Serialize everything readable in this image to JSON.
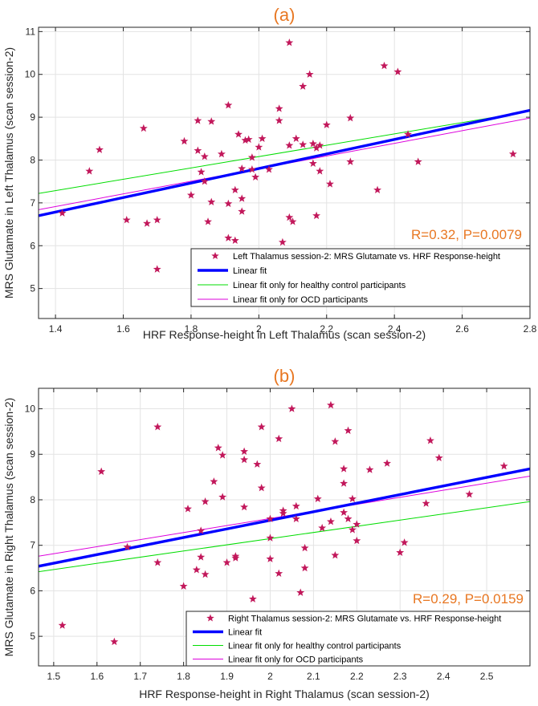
{
  "chart_data": [
    {
      "type": "scatter",
      "title": "(a)",
      "xlabel": "HRF Response-height in Left Thalamus (scan session-2)",
      "ylabel": "MRS Glutamate in Left Thalamus (scan session-2)",
      "xlim": [
        1.35,
        2.8
      ],
      "ylim": [
        4.3,
        11.1
      ],
      "xticks": [
        1.4,
        1.6,
        1.8,
        2,
        2.2,
        2.4,
        2.6,
        2.8
      ],
      "yticks": [
        5,
        6,
        7,
        8,
        9,
        10,
        11
      ],
      "stats_text": "R=0.32, P=0.0079",
      "series": [
        {
          "name": "Left Thalamus session-2: MRS Glutamate vs. HRF Response-height",
          "kind": "points",
          "color": "#C2185B",
          "points": [
            [
              1.42,
              6.76
            ],
            [
              1.5,
              7.74
            ],
            [
              1.53,
              8.24
            ],
            [
              1.61,
              6.6
            ],
            [
              1.66,
              8.74
            ],
            [
              1.67,
              6.52
            ],
            [
              1.7,
              6.6
            ],
            [
              1.7,
              5.45
            ],
            [
              1.78,
              8.44
            ],
            [
              1.8,
              7.18
            ],
            [
              1.82,
              8.92
            ],
            [
              1.82,
              8.22
            ],
            [
              1.83,
              7.72
            ],
            [
              1.84,
              8.08
            ],
            [
              1.84,
              7.5
            ],
            [
              1.85,
              6.56
            ],
            [
              1.86,
              7.02
            ],
            [
              1.86,
              8.9
            ],
            [
              1.89,
              8.14
            ],
            [
              1.91,
              9.28
            ],
            [
              1.91,
              6.98
            ],
            [
              1.91,
              6.18
            ],
            [
              1.91,
              5.85
            ],
            [
              1.93,
              7.3
            ],
            [
              1.93,
              6.12
            ],
            [
              1.94,
              8.6
            ],
            [
              1.95,
              7.8
            ],
            [
              1.95,
              7.1
            ],
            [
              1.95,
              6.8
            ],
            [
              1.96,
              8.46
            ],
            [
              1.97,
              8.48
            ],
            [
              1.98,
              8.06
            ],
            [
              1.98,
              7.78
            ],
            [
              1.99,
              7.6
            ],
            [
              2.0,
              8.3
            ],
            [
              2.01,
              8.5
            ],
            [
              2.03,
              7.78
            ],
            [
              2.06,
              8.92
            ],
            [
              2.06,
              9.2
            ],
            [
              2.07,
              6.08
            ],
            [
              2.09,
              10.74
            ],
            [
              2.09,
              8.34
            ],
            [
              2.09,
              6.66
            ],
            [
              2.1,
              6.56
            ],
            [
              2.11,
              8.5
            ],
            [
              2.13,
              8.36
            ],
            [
              2.13,
              9.72
            ],
            [
              2.15,
              10.0
            ],
            [
              2.16,
              8.38
            ],
            [
              2.16,
              7.92
            ],
            [
              2.17,
              8.28
            ],
            [
              2.17,
              6.7
            ],
            [
              2.18,
              8.34
            ],
            [
              2.18,
              7.74
            ],
            [
              2.2,
              8.82
            ],
            [
              2.21,
              7.44
            ],
            [
              2.27,
              8.98
            ],
            [
              2.27,
              7.96
            ],
            [
              2.35,
              7.3
            ],
            [
              2.37,
              10.2
            ],
            [
              2.41,
              10.06
            ],
            [
              2.44,
              8.6
            ],
            [
              2.47,
              7.96
            ],
            [
              2.75,
              8.14
            ]
          ]
        },
        {
          "name": "Linear fit",
          "kind": "line",
          "color": "#0000FF",
          "endpoints": [
            [
              1.35,
              6.7
            ],
            [
              2.8,
              9.16
            ]
          ]
        },
        {
          "name": "Linear fit only for healthy control participants",
          "kind": "line",
          "color": "#00DD00",
          "endpoints": [
            [
              1.35,
              7.22
            ],
            [
              2.8,
              9.14
            ]
          ]
        },
        {
          "name": "Linear fit only for OCD participants",
          "kind": "line",
          "color": "#DD00DD",
          "endpoints": [
            [
              1.35,
              6.84
            ],
            [
              2.8,
              8.98
            ]
          ]
        }
      ]
    },
    {
      "type": "scatter",
      "title": "(b)",
      "xlabel": "HRF Response-height in Right Thalamus (scan session-2)",
      "ylabel": "MRS Glutamate in Right Thalamus (scan session-2)",
      "xlim": [
        1.465,
        2.6
      ],
      "ylim": [
        4.35,
        10.45
      ],
      "xticks": [
        1.5,
        1.6,
        1.7,
        1.8,
        1.9,
        2,
        2.1,
        2.2,
        2.3,
        2.4,
        2.5
      ],
      "yticks": [
        5,
        6,
        7,
        8,
        9,
        10
      ],
      "stats_text": "R=0.29, P=0.0159",
      "series": [
        {
          "name": "Right Thalamus session-2: MRS Glutamate vs. HRF Response-height",
          "kind": "points",
          "color": "#C2185B",
          "points": [
            [
              1.52,
              5.24
            ],
            [
              1.61,
              8.62
            ],
            [
              1.64,
              4.88
            ],
            [
              1.67,
              6.96
            ],
            [
              1.74,
              9.6
            ],
            [
              1.74,
              6.62
            ],
            [
              1.8,
              6.1
            ],
            [
              1.81,
              7.8
            ],
            [
              1.83,
              6.46
            ],
            [
              1.84,
              7.32
            ],
            [
              1.84,
              6.74
            ],
            [
              1.85,
              7.96
            ],
            [
              1.85,
              6.36
            ],
            [
              1.87,
              8.4
            ],
            [
              1.88,
              9.14
            ],
            [
              1.89,
              8.06
            ],
            [
              1.89,
              8.98
            ],
            [
              1.9,
              6.62
            ],
            [
              1.92,
              6.72
            ],
            [
              1.92,
              6.76
            ],
            [
              1.94,
              9.06
            ],
            [
              1.94,
              8.88
            ],
            [
              1.94,
              7.84
            ],
            [
              1.96,
              5.82
            ],
            [
              1.97,
              8.78
            ],
            [
              1.98,
              8.26
            ],
            [
              1.98,
              9.6
            ],
            [
              2.0,
              7.58
            ],
            [
              2.0,
              7.16
            ],
            [
              2.0,
              6.7
            ],
            [
              2.02,
              9.34
            ],
            [
              2.02,
              6.38
            ],
            [
              2.03,
              7.7
            ],
            [
              2.03,
              7.76
            ],
            [
              2.05,
              10.0
            ],
            [
              2.06,
              7.58
            ],
            [
              2.06,
              7.86
            ],
            [
              2.07,
              5.96
            ],
            [
              2.08,
              6.5
            ],
            [
              2.08,
              6.94
            ],
            [
              2.11,
              8.02
            ],
            [
              2.12,
              7.38
            ],
            [
              2.14,
              7.52
            ],
            [
              2.14,
              10.08
            ],
            [
              2.15,
              9.28
            ],
            [
              2.15,
              6.78
            ],
            [
              2.17,
              8.36
            ],
            [
              2.17,
              7.72
            ],
            [
              2.17,
              8.68
            ],
            [
              2.18,
              9.52
            ],
            [
              2.18,
              7.58
            ],
            [
              2.19,
              8.02
            ],
            [
              2.19,
              7.34
            ],
            [
              2.2,
              7.1
            ],
            [
              2.2,
              7.46
            ],
            [
              2.23,
              8.66
            ],
            [
              2.27,
              8.8
            ],
            [
              2.3,
              6.84
            ],
            [
              2.31,
              7.06
            ],
            [
              2.36,
              7.92
            ],
            [
              2.37,
              9.3
            ],
            [
              2.39,
              8.92
            ],
            [
              2.46,
              8.12
            ],
            [
              2.54,
              8.74
            ]
          ]
        },
        {
          "name": "Linear fit",
          "kind": "line",
          "color": "#0000FF",
          "endpoints": [
            [
              1.465,
              6.54
            ],
            [
              2.6,
              8.68
            ]
          ]
        },
        {
          "name": "Linear fit only for healthy control participants",
          "kind": "line",
          "color": "#00DD00",
          "endpoints": [
            [
              1.465,
              6.42
            ],
            [
              2.6,
              7.96
            ]
          ]
        },
        {
          "name": "Linear fit only for OCD participants",
          "kind": "line",
          "color": "#DD00DD",
          "endpoints": [
            [
              1.465,
              6.76
            ],
            [
              2.6,
              8.52
            ]
          ]
        }
      ]
    }
  ]
}
